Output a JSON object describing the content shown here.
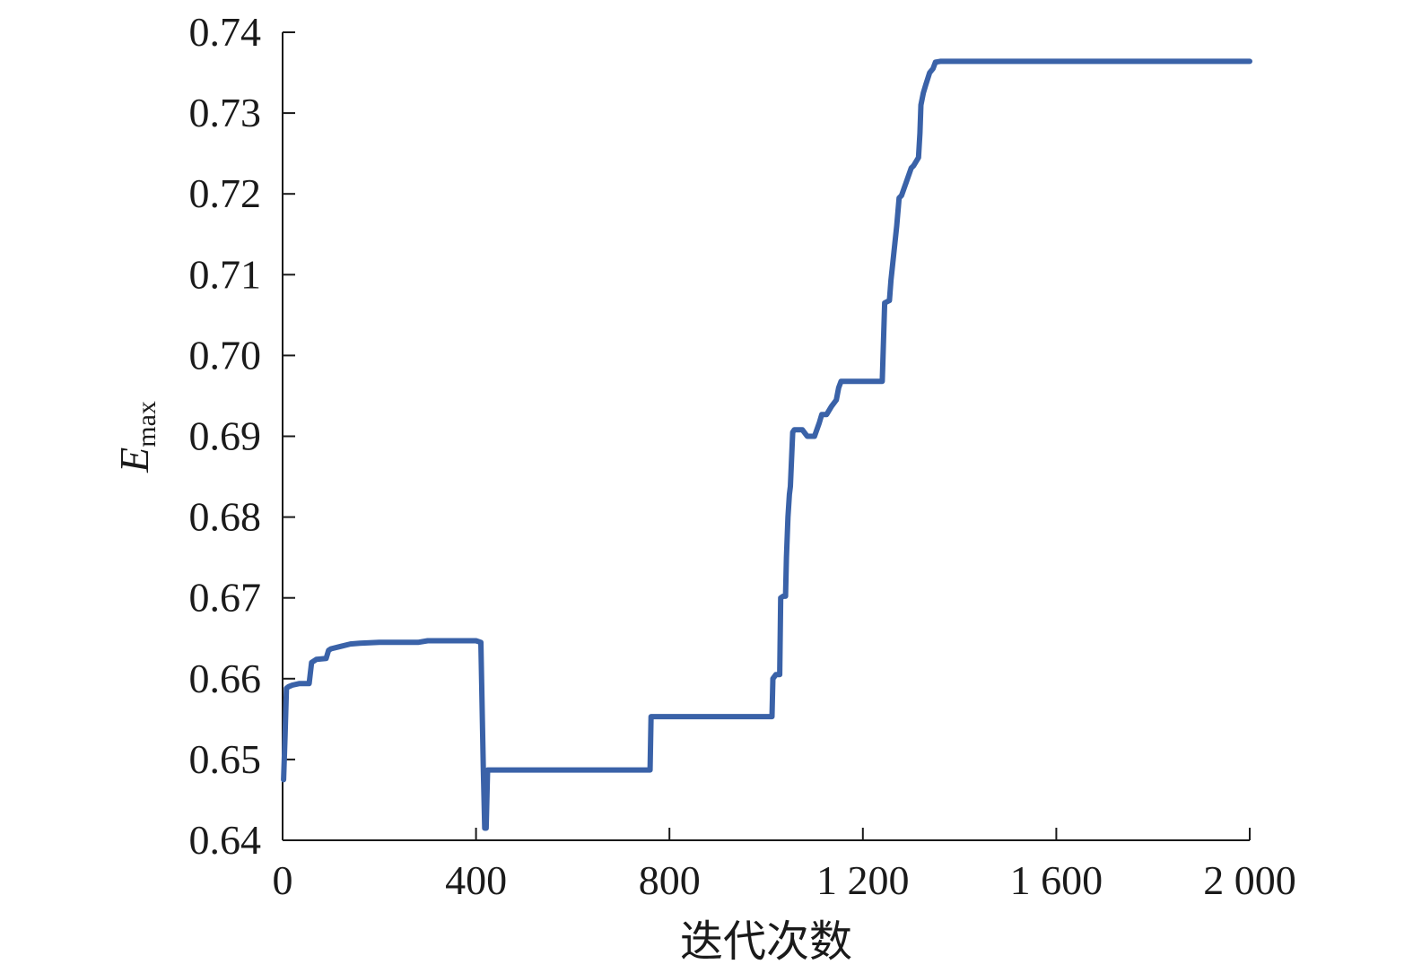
{
  "chart_data": {
    "type": "line",
    "xlabel": "迭代次数",
    "ylabel": {
      "main": "E",
      "sub": "max"
    },
    "xlim": [
      0,
      2000
    ],
    "ylim": [
      0.64,
      0.74
    ],
    "x_ticks": [
      0,
      400,
      800,
      1200,
      1600,
      2000
    ],
    "x_tick_labels": [
      "0",
      "400",
      "800",
      "1 200",
      "1 600",
      "2 000"
    ],
    "y_ticks": [
      0.64,
      0.65,
      0.66,
      0.67,
      0.68,
      0.69,
      0.7,
      0.71,
      0.72,
      0.73,
      0.74
    ],
    "y_tick_labels": [
      "0.64",
      "0.65",
      "0.66",
      "0.67",
      "0.68",
      "0.69",
      "0.70",
      "0.71",
      "0.72",
      "0.73",
      "0.74"
    ],
    "grid": false,
    "colors": {
      "line": "#3a62a8"
    },
    "series": [
      {
        "x": [
          2,
          5,
          8,
          12,
          20,
          35,
          55,
          60,
          70,
          90,
          95,
          100,
          120,
          140,
          160,
          200,
          280,
          300,
          330,
          400,
          410,
          415,
          418,
          421,
          424,
          430,
          500,
          600,
          700,
          760,
          762,
          800,
          900,
          1000,
          1012,
          1014,
          1020,
          1028,
          1030,
          1035,
          1040,
          1042,
          1045,
          1048,
          1050,
          1055,
          1058,
          1060,
          1075,
          1085,
          1100,
          1110,
          1115,
          1125,
          1135,
          1145,
          1150,
          1155,
          1160,
          1165,
          1200,
          1240,
          1245,
          1255,
          1258,
          1262,
          1270,
          1275,
          1280,
          1290,
          1300,
          1305,
          1315,
          1318,
          1320,
          1325,
          1330,
          1338,
          1345,
          1350,
          1360,
          1400,
          1600,
          1800,
          2000
        ],
        "y": [
          0.6475,
          0.6528,
          0.6588,
          0.659,
          0.6592,
          0.6594,
          0.6594,
          0.662,
          0.6624,
          0.6625,
          0.6635,
          0.6637,
          0.664,
          0.6643,
          0.6644,
          0.6645,
          0.6645,
          0.6647,
          0.6647,
          0.6647,
          0.6645,
          0.649,
          0.6415,
          0.6415,
          0.6487,
          0.6487,
          0.6487,
          0.6487,
          0.6487,
          0.6487,
          0.6553,
          0.6553,
          0.6553,
          0.6553,
          0.6553,
          0.66,
          0.6605,
          0.6605,
          0.67,
          0.6702,
          0.6702,
          0.675,
          0.68,
          0.6828,
          0.6838,
          0.6905,
          0.6908,
          0.6908,
          0.6908,
          0.69,
          0.69,
          0.6917,
          0.6927,
          0.6927,
          0.6937,
          0.6945,
          0.696,
          0.6968,
          0.6968,
          0.6968,
          0.6968,
          0.6968,
          0.7065,
          0.7068,
          0.7093,
          0.7115,
          0.716,
          0.7195,
          0.7198,
          0.7215,
          0.7232,
          0.7235,
          0.7245,
          0.7275,
          0.731,
          0.7325,
          0.7335,
          0.735,
          0.7355,
          0.7363,
          0.7364,
          0.7364,
          0.7364,
          0.7364,
          0.7364
        ]
      }
    ]
  }
}
